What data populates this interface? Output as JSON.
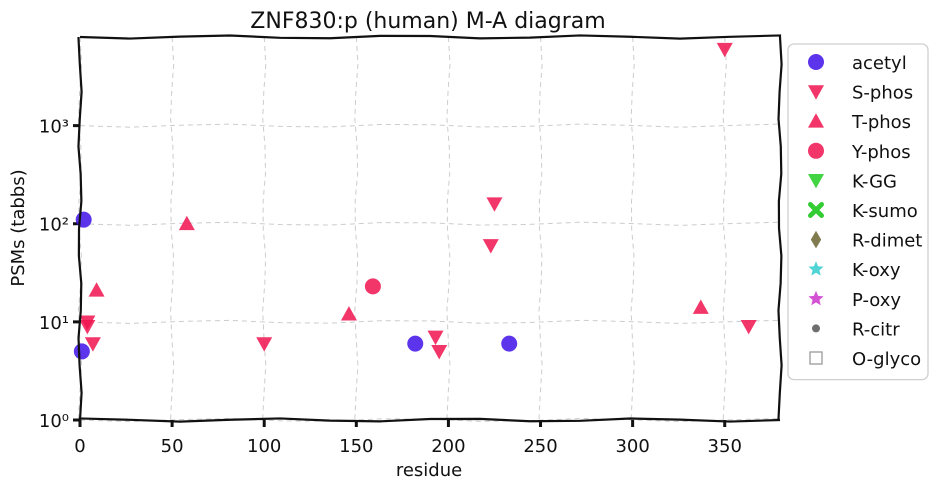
{
  "chart_data": {
    "type": "scatter",
    "title": "ZNF830:p (human) M-A diagram",
    "xlabel": "residue",
    "ylabel": "PSMs (tabbs)",
    "xlim": [
      0,
      380
    ],
    "ylim": [
      1,
      8000
    ],
    "y_scale": "log",
    "grid": true,
    "legend_position": "outside-right",
    "x_ticks": [
      0,
      50,
      100,
      150,
      200,
      250,
      300,
      350
    ],
    "y_ticks": [
      {
        "value": 1,
        "label": "10⁰"
      },
      {
        "value": 10,
        "label": "10¹"
      },
      {
        "value": 100,
        "label": "10²"
      },
      {
        "value": 1000,
        "label": "10³"
      }
    ],
    "series": [
      {
        "name": "acetyl",
        "marker": "circle",
        "color": "#3f10e8",
        "points": [
          [
            1,
            5
          ],
          [
            2,
            110
          ],
          [
            182,
            6
          ],
          [
            233,
            6
          ]
        ]
      },
      {
        "name": "S-phos",
        "marker": "triangle-down",
        "color": "#f0134f",
        "points": [
          [
            4,
            9
          ],
          [
            4,
            10
          ],
          [
            7,
            6
          ],
          [
            100,
            6
          ],
          [
            193,
            7
          ],
          [
            195,
            5
          ],
          [
            223,
            60
          ],
          [
            225,
            160
          ],
          [
            350,
            6000
          ],
          [
            363,
            9
          ]
        ]
      },
      {
        "name": "T-phos",
        "marker": "triangle-up",
        "color": "#f0134f",
        "points": [
          [
            9,
            21
          ],
          [
            58,
            100
          ],
          [
            146,
            12
          ],
          [
            337,
            14
          ]
        ]
      },
      {
        "name": "Y-phos",
        "marker": "circle",
        "color": "#f0134f",
        "points": [
          [
            159,
            23
          ]
        ]
      },
      {
        "name": "K-GG",
        "marker": "triangle-down",
        "color": "#22cc22",
        "points": []
      },
      {
        "name": "K-sumo",
        "marker": "x",
        "color": "#33cc33",
        "points": []
      },
      {
        "name": "R-dimet",
        "marker": "diamond",
        "color": "#6b6433",
        "points": []
      },
      {
        "name": "K-oxy",
        "marker": "star",
        "color": "#33cccc",
        "points": []
      },
      {
        "name": "P-oxy",
        "marker": "star",
        "color": "#cc33cc",
        "points": []
      },
      {
        "name": "R-citr",
        "marker": "dot",
        "color": "#555555",
        "points": []
      },
      {
        "name": "O-glyco",
        "marker": "square-open",
        "color": "#999999",
        "points": []
      }
    ]
  }
}
